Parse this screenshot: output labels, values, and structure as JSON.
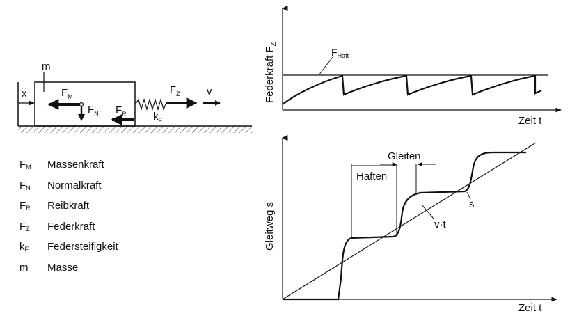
{
  "mechanism": {
    "mass_label": "m",
    "position_label": "x",
    "velocity_label": "v",
    "forces": {
      "massenkraft": {
        "main": "F",
        "sub": "M"
      },
      "normalkraft": {
        "main": "F",
        "sub": "N"
      },
      "reibkraft": {
        "main": "F",
        "sub": "R"
      },
      "federkraft": {
        "main": "F",
        "sub": "Z"
      },
      "federsteifigkeit": {
        "main": "k",
        "sub": "F"
      }
    }
  },
  "legend": [
    {
      "symbol": "F",
      "sub": "M",
      "text": "Massenkraft"
    },
    {
      "symbol": "F",
      "sub": "N",
      "text": "Normalkraft"
    },
    {
      "symbol": "F",
      "sub": "R",
      "text": "Reibkraft"
    },
    {
      "symbol": "F",
      "sub": "Z",
      "text": "Federkraft"
    },
    {
      "symbol": "k",
      "sub": "F",
      "text": "Federsteifigkeit"
    },
    {
      "symbol": "m",
      "sub": "",
      "text": "Masse"
    }
  ],
  "top_chart": {
    "ylabel_main": "Federkraft F",
    "ylabel_sub": "Z",
    "xlabel": "Zeit t",
    "haft_main": "F",
    "haft_sub": "Haft"
  },
  "bottom_chart": {
    "ylabel": "Gleitweg s",
    "xlabel": "Zeit t",
    "haften_label": "Haften",
    "gleiten_label": "Gleiten",
    "vt_label": "v·t",
    "s_label": "s"
  }
}
